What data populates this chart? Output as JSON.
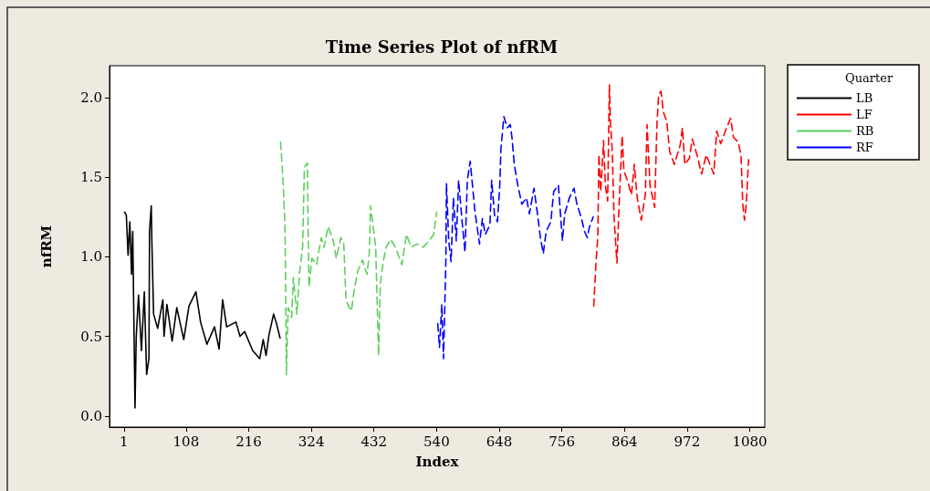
{
  "chart_data": {
    "type": "line",
    "title": "Time Series Plot of nfRM",
    "xlabel": "Index",
    "ylabel": "nfRM",
    "legend_title": "Quarter",
    "legend": "right",
    "grid": false,
    "marker": "none",
    "xlim": [
      -24,
      1106
    ],
    "xticks": [
      1,
      108,
      216,
      324,
      432,
      540,
      648,
      756,
      864,
      972,
      1080
    ],
    "ylim": [
      -0.07,
      2.2
    ],
    "yticks": [
      {
        "value": 0,
        "label": "0.0"
      },
      0.5,
      {
        "value": 1,
        "label": "1.0"
      },
      1.5,
      {
        "value": 2,
        "label": "2.0"
      }
    ],
    "series": [
      {
        "name": "LB",
        "color": "#000000",
        "line_style": "solid",
        "x": [
          2,
          5,
          8,
          11,
          14,
          16,
          20,
          22,
          26,
          31,
          36,
          40,
          44,
          45,
          48,
          49,
          52,
          59,
          68,
          70,
          75,
          84,
          92,
          104,
          113,
          125,
          133,
          144,
          157,
          165,
          171,
          178,
          194,
          201,
          209,
          223,
          235,
          241,
          246,
          251,
          259,
          264,
          270
        ],
        "values": [
          1.28,
          1.26,
          1.01,
          1.22,
          0.89,
          1.16,
          0.05,
          0.49,
          0.76,
          0.41,
          0.78,
          0.26,
          0.36,
          1.16,
          1.32,
          1.1,
          0.64,
          0.55,
          0.73,
          0.5,
          0.7,
          0.47,
          0.68,
          0.48,
          0.69,
          0.78,
          0.59,
          0.45,
          0.56,
          0.42,
          0.73,
          0.56,
          0.59,
          0.5,
          0.53,
          0.41,
          0.36,
          0.48,
          0.38,
          0.51,
          0.64,
          0.58,
          0.49
        ]
      },
      {
        "name": "LF",
        "color": "#ff0000",
        "line_style": "dashed",
        "x": [
          811,
          815,
          818,
          820,
          823,
          828,
          831,
          835,
          838,
          840,
          843,
          846,
          851,
          855,
          860,
          863,
          869,
          876,
          881,
          886,
          893,
          900,
          903,
          908,
          916,
          920,
          923,
          927,
          931,
          937,
          942,
          950,
          960,
          964,
          968,
          976,
          981,
          989,
          997,
          1005,
          1018,
          1023,
          1030,
          1039,
          1047,
          1052,
          1060,
          1065,
          1068,
          1071,
          1074,
          1078
        ],
        "values": [
          0.69,
          0.97,
          1.12,
          1.64,
          1.41,
          1.73,
          1.45,
          1.35,
          2.08,
          1.83,
          1.66,
          1.25,
          0.96,
          1.35,
          1.76,
          1.54,
          1.48,
          1.39,
          1.58,
          1.37,
          1.23,
          1.39,
          1.83,
          1.45,
          1.31,
          1.83,
          2.02,
          2.04,
          1.91,
          1.85,
          1.66,
          1.58,
          1.7,
          1.81,
          1.58,
          1.62,
          1.74,
          1.64,
          1.52,
          1.64,
          1.52,
          1.79,
          1.71,
          1.8,
          1.87,
          1.75,
          1.72,
          1.64,
          1.33,
          1.23,
          1.33,
          1.61
        ]
      },
      {
        "name": "RB",
        "color": "#5fcf5f",
        "line_style": "dashed",
        "x": [
          271,
          275,
          278,
          279,
          281,
          284,
          290,
          293,
          299,
          304,
          309,
          312,
          317,
          320,
          325,
          333,
          341,
          346,
          353,
          362,
          367,
          375,
          380,
          384,
          393,
          398,
          404,
          412,
          420,
          424,
          426,
          431,
          435,
          440,
          443,
          448,
          453,
          461,
          469,
          480,
          488,
          496,
          506,
          517,
          527,
          535,
          540
        ],
        "values": [
          1.72,
          1.5,
          1.24,
          1.08,
          0.26,
          0.68,
          0.62,
          0.87,
          0.64,
          0.91,
          1.06,
          1.56,
          1.59,
          0.81,
          0.99,
          0.95,
          1.12,
          1.06,
          1.19,
          1.1,
          0.99,
          1.12,
          1.08,
          0.72,
          0.66,
          0.79,
          0.91,
          0.98,
          0.89,
          1.02,
          1.32,
          1.18,
          1.06,
          0.38,
          0.83,
          0.97,
          1.06,
          1.11,
          1.06,
          0.95,
          1.14,
          1.06,
          1.08,
          1.06,
          1.1,
          1.14,
          1.28
        ]
      },
      {
        "name": "RF",
        "color": "#0000ff",
        "line_style": "dashed",
        "x": [
          542,
          545,
          549,
          552,
          556,
          557,
          561,
          565,
          569,
          574,
          578,
          584,
          589,
          593,
          598,
          606,
          614,
          619,
          624,
          632,
          635,
          640,
          645,
          649,
          651,
          656,
          662,
          667,
          670,
          674,
          680,
          687,
          695,
          700,
          708,
          715,
          719,
          724,
          729,
          737,
          742,
          750,
          757,
          761,
          769,
          777,
          782,
          790,
          795,
          800,
          803,
          810
        ],
        "values": [
          0.58,
          0.43,
          0.7,
          0.36,
          0.97,
          1.46,
          1.1,
          0.97,
          1.37,
          1.1,
          1.48,
          1.22,
          1.03,
          1.48,
          1.6,
          1.29,
          1.08,
          1.24,
          1.14,
          1.2,
          1.48,
          1.26,
          1.22,
          1.45,
          1.68,
          1.88,
          1.81,
          1.83,
          1.75,
          1.58,
          1.45,
          1.33,
          1.37,
          1.27,
          1.43,
          1.24,
          1.12,
          1.02,
          1.16,
          1.22,
          1.41,
          1.45,
          1.1,
          1.27,
          1.37,
          1.43,
          1.33,
          1.24,
          1.16,
          1.12,
          1.18,
          1.25
        ]
      }
    ]
  }
}
